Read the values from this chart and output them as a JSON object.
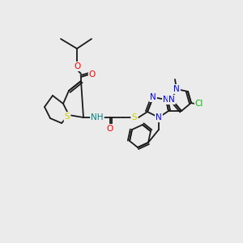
{
  "bg_color": "#ebebeb",
  "bond_color": "#1a1a1a",
  "colors": {
    "O": "#ff0000",
    "S": "#cccc00",
    "N": "#0000ff",
    "Cl": "#00bb00",
    "H": "#008080",
    "C": "#1a1a1a"
  },
  "font_size": 7.5,
  "lw": 1.3
}
